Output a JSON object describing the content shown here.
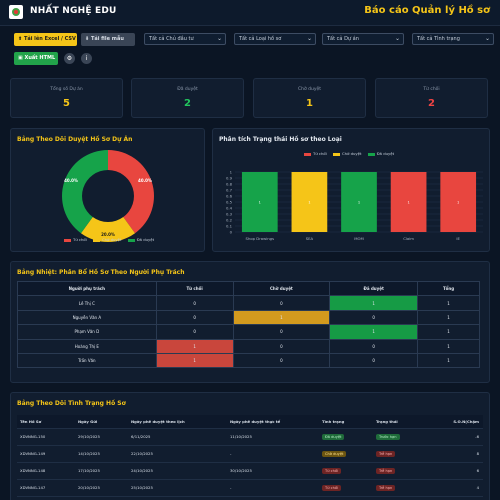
{
  "header": {
    "app_title": "NHẤT NGHỆ EDU",
    "report_title": "Báo cáo Quản lý Hồ sơ"
  },
  "toolbar": {
    "upload_label": "Tải lên Excel / CSV",
    "template_label": "Tải file mẫu",
    "export_label": "Xuất HTML",
    "filters": [
      "Tất cả Chủ đầu tư",
      "Tất cả Loại hồ sơ",
      "Tất cả Dự án",
      "Tất cả Tình trạng"
    ]
  },
  "stats": [
    {
      "label": "Tổng số Dự án",
      "value": "5",
      "color": "#f5c518"
    },
    {
      "label": "Đã duyệt",
      "value": "2",
      "color": "#22c55e"
    },
    {
      "label": "Chờ duyệt",
      "value": "1",
      "color": "#f5c518"
    },
    {
      "label": "Từ chối",
      "value": "2",
      "color": "#ef4444"
    }
  ],
  "donut": {
    "title": "Bảng Theo Dõi Duyệt Hồ Sơ Dự Án",
    "labels": {
      "red": "40.0%",
      "yellow": "20.0%",
      "green": "40.0%"
    },
    "legend": [
      "Từ chối",
      "Chờ duyệt",
      "Đã duyệt"
    ]
  },
  "chart_data": {
    "type": "bar",
    "title": "Phân tích Trạng thái Hồ sơ theo Loại",
    "categories": [
      "Shop Drawings",
      "SEA",
      "MOM",
      "Claim",
      "IE"
    ],
    "series": [
      {
        "name": "Từ chối",
        "values": [
          0,
          0,
          0,
          1,
          1
        ],
        "color": "#e8463f"
      },
      {
        "name": "Chờ duyệt",
        "values": [
          0,
          1,
          0,
          0,
          0
        ],
        "color": "#f5c518"
      },
      {
        "name": "Đã duyệt",
        "values": [
          1,
          0,
          1,
          0,
          0
        ],
        "color": "#16a34a"
      }
    ],
    "bar_labels": [
      "1",
      "1",
      "1",
      "1",
      "1"
    ],
    "ylim": [
      0,
      1
    ],
    "yticks": [
      "0",
      "0.1",
      "0.2",
      "0.3",
      "0.4",
      "0.5",
      "0.6",
      "0.7",
      "0.8",
      "0.9",
      "1"
    ]
  },
  "matrix": {
    "title": "Bảng Nhiệt: Phân Bổ Hồ Sơ Theo Người Phụ Trách",
    "headers": [
      "Người phụ trách",
      "Từ chối",
      "Chờ duyệt",
      "Đã duyệt",
      "Tổng"
    ],
    "rows": [
      {
        "name": "Lê Thị C",
        "cells": [
          "0",
          "0",
          "1",
          "1"
        ],
        "hl": [
          null,
          null,
          "green"
        ]
      },
      {
        "name": "Nguyễn Văn A",
        "cells": [
          "0",
          "1",
          "0",
          "1"
        ],
        "hl": [
          null,
          "yellow",
          null
        ]
      },
      {
        "name": "Phạm Văn D",
        "cells": [
          "0",
          "0",
          "1",
          "1"
        ],
        "hl": [
          null,
          null,
          "green"
        ]
      },
      {
        "name": "Hoàng Thị E",
        "cells": [
          "1",
          "0",
          "0",
          "1"
        ],
        "hl": [
          "red",
          null,
          null
        ]
      },
      {
        "name": "Trần Văn",
        "cells": [
          "1",
          "0",
          "0",
          "1"
        ],
        "hl": [
          "red",
          null,
          null
        ]
      }
    ]
  },
  "status": {
    "title": "Bảng Theo Dõi Tình Trạng Hồ Sơ",
    "headers": [
      "Tên Hồ Sơ",
      "Ngày Gửi",
      "Ngày phê duyệt theo lịch",
      "Ngày phê duyệt thực tế",
      "Tình trạng",
      "Trạng thái",
      "S.O.N(Chậm"
    ],
    "rows": [
      {
        "name": "XDVNNG-150",
        "sent": "29/10/2025",
        "plan": "6/11/2025",
        "actual": "11/10/2025",
        "state": "Đã duyệt",
        "state_c": "green",
        "status": "Trước hạn",
        "status_c": "green",
        "son": "-6"
      },
      {
        "name": "XDVNNG-149",
        "sent": "14/10/2025",
        "plan": "22/10/2025",
        "actual": "-",
        "state": "Chờ duyệt",
        "state_c": "yellow",
        "status": "Trễ hạn",
        "status_c": "red",
        "son": "8"
      },
      {
        "name": "XDVNNG-148",
        "sent": "17/10/2025",
        "plan": "24/10/2025",
        "actual": "30/10/2025",
        "state": "Từ chối",
        "state_c": "red",
        "status": "Trễ hạn",
        "status_c": "red",
        "son": "6"
      },
      {
        "name": "XDVNNG-147",
        "sent": "20/10/2025",
        "plan": "25/10/2025",
        "actual": "-",
        "state": "Từ chối",
        "state_c": "red",
        "status": "Trễ hạn",
        "status_c": "red",
        "son": "4"
      }
    ]
  }
}
